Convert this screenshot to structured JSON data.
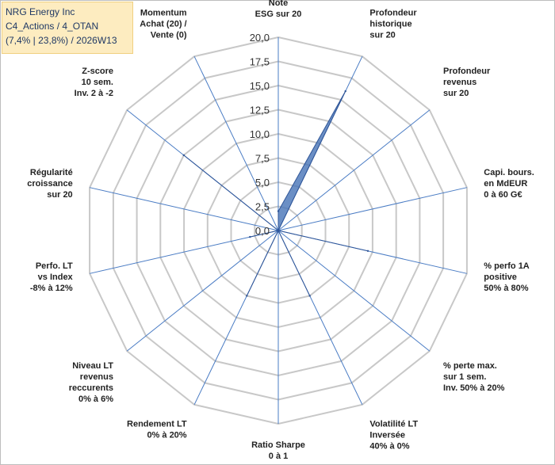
{
  "info": {
    "line1": "NRG Energy Inc",
    "line2": "C4_Actions / 4_OTAN",
    "line3": "(7,4% | 23,8%) / 2026W13"
  },
  "colors": {
    "grid": "#c8c8c8",
    "spoke": "#4a7cc4",
    "fill": "#4a76b8",
    "stroke": "#2f5597",
    "info_bg": "#fdecc0",
    "info_text": "#1f3864"
  },
  "chart_data": {
    "type": "radar",
    "title": "",
    "rmin": 0,
    "rmax": 20,
    "tick_step": 2.5,
    "tick_labels": [
      "0,0",
      "2,5",
      "5,0",
      "7,5",
      "10,0",
      "12,5",
      "15,0",
      "17,5",
      "20,0"
    ],
    "axes": [
      [
        "Note",
        "ESG sur 20"
      ],
      [
        "Profondeur",
        "historique",
        "sur 20"
      ],
      [
        "Profondeur",
        "revenus",
        "sur 20"
      ],
      [
        "Capi. bours.",
        "en MdEUR",
        "0 à 60 G€"
      ],
      [
        "% perfo 1A",
        "positive",
        "50% à 80%"
      ],
      [
        "% perte max.",
        "sur 1 sem.",
        "Inv. 50% à 20%"
      ],
      [
        "Volatilité LT",
        "Inversée",
        "40% à 0%"
      ],
      [
        "Ratio Sharpe",
        "0 à 1"
      ],
      [
        "Rendement LT",
        "0% à 20%"
      ],
      [
        "Niveau LT",
        "revenus",
        "reccurents",
        "0% à 6%"
      ],
      [
        "Perfo. LT",
        "vs Index",
        "-8% à 12%"
      ],
      [
        "Régularité",
        "croissance",
        "sur 20"
      ],
      [
        "Z-score",
        "10 sem.",
        "Inv. 2 à -2"
      ],
      [
        "Momentum",
        "Achat (20) /",
        "Vente (0)"
      ]
    ],
    "series": [
      {
        "name": "NRG Energy Inc",
        "values": [
          2.0,
          16.0,
          0.0,
          0.0,
          9.5,
          0.0,
          7.5,
          0.0,
          7.5,
          0.0,
          3.0,
          0.0,
          12.5,
          0.0
        ]
      }
    ]
  }
}
